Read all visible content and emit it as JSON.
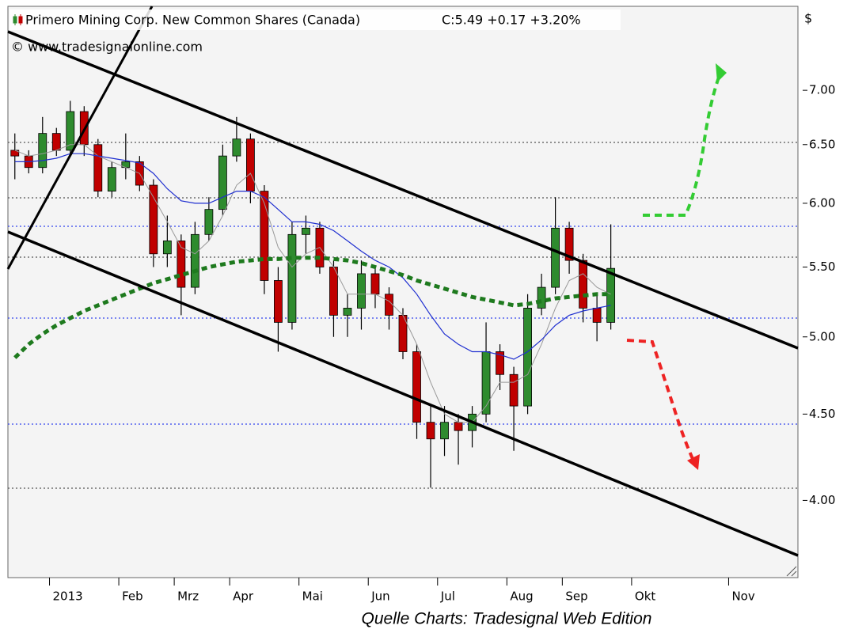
{
  "chart_data": {
    "type": "candlestick",
    "title": "Primero Mining Corp.  New Common Shares (Canada)",
    "quote": "C:5.49 +0.17 +3.20%",
    "source": "© www.tradesignalonline.com",
    "caption": "Quelle Charts: Tradesignal Web Edition",
    "y_axis_label": "$",
    "log_scale": true,
    "up_color": "#2e8b2e",
    "down_color": "#c00000",
    "quote_color": "#22bb22",
    "categories": [
      null,
      null,
      null,
      "2013",
      null,
      null,
      null,
      null,
      "Feb",
      null,
      null,
      null,
      "Mrz",
      null,
      null,
      null,
      "Apr",
      null,
      null,
      null,
      null,
      "Mai",
      null,
      null,
      null,
      null,
      "Jun",
      null,
      null,
      null,
      null,
      "Jul",
      null,
      null,
      null,
      null,
      "Aug",
      null,
      null,
      null,
      "Sep",
      null,
      null,
      null,
      null,
      "Okt",
      null,
      null,
      null,
      null,
      null,
      null,
      "Nov",
      null,
      null,
      null,
      null
    ],
    "open": [
      6.45,
      6.4,
      6.3,
      6.6,
      6.45,
      6.8,
      6.5,
      6.1,
      6.3,
      6.35,
      6.15,
      5.6,
      5.7,
      5.35,
      5.75,
      5.95,
      6.4,
      6.55,
      6.1,
      5.4,
      5.1,
      5.75,
      5.8,
      5.5,
      5.15,
      5.2,
      5.45,
      5.3,
      5.15,
      4.9,
      4.45,
      4.35,
      4.45,
      4.4,
      4.5,
      4.9,
      4.75,
      4.55,
      5.2,
      5.35,
      5.8,
      5.55,
      5.2,
      5.1,
      null,
      null,
      null,
      null,
      null,
      null,
      null,
      null,
      null,
      null,
      null,
      null,
      null
    ],
    "high": [
      6.6,
      6.45,
      6.75,
      6.65,
      6.9,
      6.85,
      6.55,
      6.35,
      6.6,
      6.4,
      6.2,
      5.9,
      5.75,
      5.85,
      6.05,
      6.5,
      6.75,
      6.6,
      6.15,
      5.5,
      5.85,
      5.9,
      5.85,
      5.55,
      5.3,
      5.55,
      5.5,
      5.35,
      5.2,
      4.95,
      4.55,
      4.55,
      4.5,
      4.55,
      5.1,
      4.95,
      4.8,
      5.3,
      5.45,
      6.05,
      5.85,
      5.6,
      5.3,
      5.83,
      null,
      null,
      null,
      null,
      null,
      null,
      null,
      null,
      null,
      null,
      null,
      null,
      null
    ],
    "low": [
      6.2,
      6.25,
      6.25,
      6.4,
      6.4,
      6.4,
      6.05,
      6.05,
      6.2,
      6.1,
      5.5,
      5.5,
      5.15,
      5.3,
      5.7,
      5.9,
      6.35,
      6.0,
      5.3,
      4.9,
      5.05,
      5.6,
      5.45,
      5.0,
      5.0,
      5.05,
      5.2,
      5.05,
      4.85,
      4.35,
      4.07,
      4.25,
      4.2,
      4.3,
      4.45,
      4.65,
      4.28,
      4.5,
      5.15,
      5.3,
      5.45,
      5.1,
      4.97,
      5.05,
      null,
      null,
      null,
      null,
      null,
      null,
      null,
      null,
      null,
      null,
      null,
      null,
      null
    ],
    "close": [
      6.4,
      6.3,
      6.6,
      6.45,
      6.8,
      6.5,
      6.1,
      6.3,
      6.35,
      6.15,
      5.6,
      5.7,
      5.35,
      5.75,
      5.95,
      6.4,
      6.55,
      6.1,
      5.4,
      5.1,
      5.75,
      5.8,
      5.5,
      5.15,
      5.2,
      5.45,
      5.3,
      5.15,
      4.9,
      4.45,
      4.35,
      4.45,
      4.4,
      4.5,
      4.9,
      4.75,
      4.55,
      5.2,
      5.35,
      5.8,
      5.55,
      5.2,
      5.1,
      5.49,
      null,
      null,
      null,
      null,
      null,
      null,
      null,
      null,
      null,
      null,
      null,
      null,
      null
    ],
    "overlays": [
      {
        "color": "#999999",
        "width": 1,
        "dashed": false,
        "values": [
          6.45,
          6.4,
          6.42,
          6.45,
          6.5,
          6.5,
          6.4,
          6.35,
          6.3,
          6.25,
          6.05,
          5.85,
          5.65,
          5.6,
          5.7,
          5.9,
          6.15,
          6.25,
          6.0,
          5.65,
          5.5,
          5.6,
          5.65,
          5.5,
          5.3,
          5.3,
          5.3,
          5.25,
          5.15,
          4.95,
          4.7,
          4.5,
          4.45,
          4.45,
          4.55,
          4.7,
          4.7,
          4.75,
          4.95,
          5.2,
          5.4,
          5.45,
          5.35,
          5.3,
          null,
          null,
          null,
          null,
          null,
          null,
          null,
          null,
          null,
          null,
          null,
          null,
          null
        ]
      },
      {
        "color": "#1f2fd0",
        "width": 1.2,
        "dashed": false,
        "values": [
          6.35,
          6.35,
          6.36,
          6.38,
          6.42,
          6.42,
          6.4,
          6.38,
          6.36,
          6.34,
          6.25,
          6.12,
          6.02,
          6.0,
          6.0,
          6.05,
          6.1,
          6.1,
          6.05,
          5.95,
          5.85,
          5.85,
          5.83,
          5.78,
          5.7,
          5.62,
          5.55,
          5.5,
          5.42,
          5.3,
          5.15,
          5.02,
          4.95,
          4.9,
          4.9,
          4.88,
          4.85,
          4.9,
          4.98,
          5.08,
          5.15,
          5.18,
          5.2,
          5.22,
          null,
          null,
          null,
          null,
          null,
          null,
          null,
          null,
          null,
          null,
          null,
          null,
          null
        ]
      },
      {
        "color": "#1e7a1e",
        "width": 5,
        "dashed": true,
        "values": [
          4.86,
          4.95,
          5.02,
          5.08,
          5.13,
          5.18,
          5.22,
          5.26,
          5.3,
          5.34,
          5.38,
          5.41,
          5.44,
          5.47,
          5.5,
          5.52,
          5.54,
          5.55,
          5.56,
          5.56,
          5.57,
          5.57,
          5.57,
          5.56,
          5.55,
          5.53,
          5.5,
          5.47,
          5.44,
          5.4,
          5.37,
          5.34,
          5.31,
          5.28,
          5.26,
          5.24,
          5.22,
          5.23,
          5.25,
          5.27,
          5.28,
          5.29,
          5.3,
          5.3,
          null,
          null,
          null,
          null,
          null,
          null,
          null,
          null,
          null,
          null,
          null,
          null,
          null
        ]
      }
    ],
    "ylim": [
      3.6,
      7.85
    ],
    "yticks": [
      {
        "value": 4,
        "label": "4.00"
      },
      {
        "value": 4.5,
        "label": "4.50"
      },
      {
        "value": 5,
        "label": "5.00"
      },
      {
        "value": 5.5,
        "label": "5.50"
      },
      {
        "value": 6,
        "label": "6.00"
      },
      {
        "value": 6.5,
        "label": "6.50"
      },
      {
        "value": 7,
        "label": "7.00"
      }
    ]
  }
}
